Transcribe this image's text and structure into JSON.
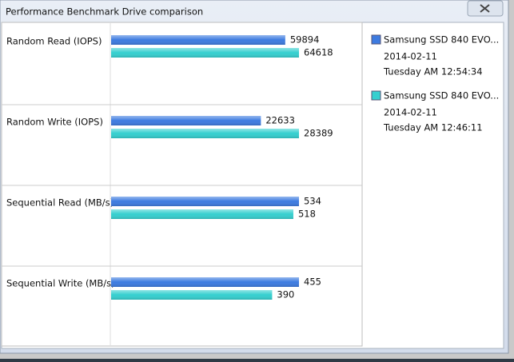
{
  "window": {
    "title": "Performance Benchmark Drive comparison"
  },
  "chart_data": {
    "type": "bar",
    "orientation": "horizontal",
    "categories": [
      "Random Read (IOPS)",
      "Random Write (IOPS)",
      "Sequential Read (MB/s)",
      "Sequential Write (MB/s)"
    ],
    "series": [
      {
        "name": "Samsung SSD 840 EVO...",
        "date": "2014-02-11",
        "time": "Tuesday AM 12:54:34",
        "color": "#3d7be0",
        "values": [
          59894,
          22633,
          534,
          455
        ]
      },
      {
        "name": "Samsung SSD 840 EVO...",
        "date": "2014-02-11",
        "time": "Tuesday AM 12:46:11",
        "color": "#35cfcf",
        "values": [
          64618,
          28389,
          518,
          390
        ]
      }
    ]
  }
}
